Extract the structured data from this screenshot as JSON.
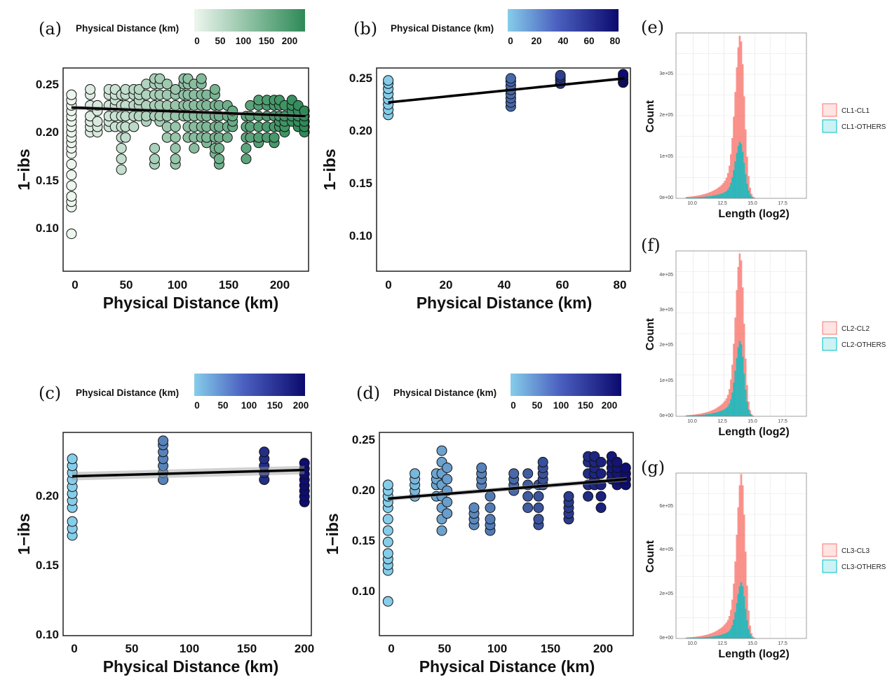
{
  "chart_data": [
    {
      "panel": "(a)",
      "type": "scatter",
      "xlabel": "Physical Distance (km)",
      "ylabel": "1−ibs",
      "xlim": [
        -8,
        228
      ],
      "ylim": [
        0.075,
        0.265
      ],
      "xticks": [
        "0",
        "50",
        "100",
        "150",
        "200"
      ],
      "yticks": [
        "0.10",
        "0.15",
        "0.20",
        "0.25"
      ],
      "colorbar": {
        "title": "Physical Distance (km)",
        "ticks": [
          "0",
          "50",
          "100",
          "150",
          "200"
        ],
        "range": [
          0,
          225
        ],
        "low": "#edf6ee",
        "high": "#2e8a57"
      },
      "fit": {
        "from": [
          0,
          0.228
        ],
        "to": [
          225,
          0.22
        ],
        "band": 0.002
      },
      "groups": [
        {
          "x": 0,
          "values": [
            0.11,
            0.135,
            0.14,
            0.145,
            0.155,
            0.165,
            0.175,
            0.185,
            0.19,
            0.195,
            0.2,
            0.205,
            0.21,
            0.215,
            0.22,
            0.225,
            0.23,
            0.235,
            0.24
          ]
        },
        {
          "x": 18,
          "values": [
            0.205,
            0.21,
            0.215,
            0.22,
            0.23,
            0.24,
            0.245
          ]
        },
        {
          "x": 25,
          "values": [
            0.205,
            0.21,
            0.215,
            0.225,
            0.23
          ]
        },
        {
          "x": 36,
          "values": [
            0.21,
            0.215,
            0.22,
            0.23,
            0.24,
            0.245
          ]
        },
        {
          "x": 42,
          "values": [
            0.21,
            0.22,
            0.23,
            0.235,
            0.24,
            0.245
          ]
        },
        {
          "x": 48,
          "values": [
            0.17,
            0.18,
            0.19,
            0.2,
            0.21,
            0.22,
            0.23,
            0.24
          ]
        },
        {
          "x": 52,
          "values": [
            0.2,
            0.21,
            0.22,
            0.23,
            0.24,
            0.245
          ]
        },
        {
          "x": 60,
          "values": [
            0.21,
            0.22,
            0.23,
            0.24,
            0.245
          ]
        },
        {
          "x": 65,
          "values": [
            0.22,
            0.23,
            0.235,
            0.24,
            0.245
          ]
        },
        {
          "x": 72,
          "values": [
            0.215,
            0.22,
            0.23,
            0.24,
            0.25
          ]
        },
        {
          "x": 80,
          "values": [
            0.175,
            0.18,
            0.19,
            0.22,
            0.23,
            0.24,
            0.25,
            0.255
          ]
        },
        {
          "x": 85,
          "values": [
            0.215,
            0.22,
            0.23,
            0.24,
            0.25,
            0.255
          ]
        },
        {
          "x": 92,
          "values": [
            0.2,
            0.21,
            0.22,
            0.23,
            0.24,
            0.25
          ]
        },
        {
          "x": 100,
          "values": [
            0.175,
            0.18,
            0.19,
            0.2,
            0.21,
            0.22,
            0.23,
            0.24,
            0.245
          ]
        },
        {
          "x": 108,
          "values": [
            0.22,
            0.23,
            0.24,
            0.25,
            0.255
          ]
        },
        {
          "x": 112,
          "values": [
            0.2,
            0.21,
            0.22,
            0.23,
            0.24,
            0.25,
            0.255
          ]
        },
        {
          "x": 118,
          "values": [
            0.19,
            0.2,
            0.21,
            0.22,
            0.23,
            0.24,
            0.25
          ]
        },
        {
          "x": 125,
          "values": [
            0.2,
            0.21,
            0.22,
            0.23,
            0.24,
            0.25,
            0.255
          ]
        },
        {
          "x": 130,
          "values": [
            0.195,
            0.2,
            0.21,
            0.22,
            0.23,
            0.24
          ]
        },
        {
          "x": 138,
          "values": [
            0.185,
            0.19,
            0.2,
            0.21,
            0.22,
            0.23,
            0.24,
            0.245
          ]
        },
        {
          "x": 142,
          "values": [
            0.175,
            0.18,
            0.19,
            0.2,
            0.21,
            0.22,
            0.23
          ]
        },
        {
          "x": 150,
          "values": [
            0.2,
            0.21,
            0.22,
            0.23
          ]
        },
        {
          "x": 155,
          "values": [
            0.21,
            0.215,
            0.22,
            0.225
          ]
        },
        {
          "x": 168,
          "values": [
            0.18,
            0.19,
            0.2,
            0.21,
            0.22
          ]
        },
        {
          "x": 172,
          "values": [
            0.2,
            0.21,
            0.22,
            0.23
          ]
        },
        {
          "x": 180,
          "values": [
            0.195,
            0.2,
            0.21,
            0.22,
            0.23,
            0.235
          ]
        },
        {
          "x": 188,
          "values": [
            0.2,
            0.21,
            0.22,
            0.23,
            0.235
          ]
        },
        {
          "x": 195,
          "values": [
            0.195,
            0.2,
            0.21,
            0.22,
            0.23,
            0.235
          ]
        },
        {
          "x": 200,
          "values": [
            0.21,
            0.215,
            0.22,
            0.23,
            0.235
          ]
        },
        {
          "x": 205,
          "values": [
            0.205,
            0.21,
            0.215,
            0.22,
            0.23
          ]
        },
        {
          "x": 212,
          "values": [
            0.215,
            0.22,
            0.225,
            0.23,
            0.235
          ]
        },
        {
          "x": 218,
          "values": [
            0.21,
            0.215,
            0.22,
            0.225,
            0.23
          ]
        },
        {
          "x": 224,
          "values": [
            0.205,
            0.21,
            0.215,
            0.22,
            0.225
          ]
        }
      ]
    },
    {
      "panel": "(b)",
      "type": "scatter",
      "xlabel": "Physical Distance (km)",
      "ylabel": "1−ibs",
      "xlim": [
        -4,
        83
      ],
      "ylim": [
        0.06,
        0.255
      ],
      "xticks": [
        "0",
        "20",
        "40",
        "60",
        "80"
      ],
      "yticks": [
        "0.10",
        "0.15",
        "0.20",
        "0.25"
      ],
      "colorbar": {
        "title": "Physical Distance (km)",
        "ticks": [
          "0",
          "20",
          "40",
          "60",
          "80"
        ],
        "range": [
          0,
          81
        ],
        "low": "#86cdea",
        "high": "#0c0a6e"
      },
      "fit": {
        "from": [
          0,
          0.222
        ],
        "to": [
          81,
          0.245
        ],
        "band": 0.001
      },
      "groups": [
        {
          "x": 0,
          "values": [
            0.21,
            0.215,
            0.22,
            0.225,
            0.23,
            0.235,
            0.24,
            0.243
          ]
        },
        {
          "x": 42,
          "values": [
            0.218,
            0.222,
            0.226,
            0.23,
            0.234,
            0.238,
            0.242,
            0.245
          ]
        },
        {
          "x": 59,
          "values": [
            0.24,
            0.243,
            0.246,
            0.248
          ]
        },
        {
          "x": 80.5,
          "values": [
            0.241,
            0.244,
            0.247,
            0.249
          ]
        }
      ]
    },
    {
      "panel": "(c)",
      "type": "scatter",
      "xlabel": "Physical Distance (km)",
      "ylabel": "1−ibs",
      "xlim": [
        -8,
        208
      ],
      "ylim": [
        0.098,
        0.244
      ],
      "xticks": [
        "0",
        "50",
        "100",
        "150",
        "200"
      ],
      "yticks": [
        "0.10",
        "0.15",
        "0.20"
      ],
      "colorbar": {
        "title": "Physical Distance (km)",
        "ticks": [
          "0",
          "50",
          "100",
          "150",
          "200"
        ],
        "range": [
          0,
          205
        ],
        "low": "#86cdea",
        "high": "#0c0a6e"
      },
      "fit": {
        "from": [
          0,
          0.2125
        ],
        "to": [
          202,
          0.217
        ],
        "band": 0.003
      },
      "groups": [
        {
          "x": 0,
          "values": [
            0.17,
            0.175,
            0.18,
            0.19,
            0.195,
            0.2,
            0.205,
            0.21,
            0.215,
            0.22,
            0.225
          ]
        },
        {
          "x": 79,
          "values": [
            0.21,
            0.215,
            0.22,
            0.225,
            0.23,
            0.235,
            0.238
          ]
        },
        {
          "x": 167,
          "values": [
            0.21,
            0.215,
            0.22,
            0.225,
            0.23
          ]
        },
        {
          "x": 202,
          "values": [
            0.194,
            0.198,
            0.202,
            0.206,
            0.21,
            0.214,
            0.218,
            0.222
          ]
        }
      ]
    },
    {
      "panel": "(d)",
      "type": "scatter",
      "xlabel": "Physical Distance (km)",
      "ylabel": "1−ibs",
      "xlim": [
        -8,
        228
      ],
      "ylim": [
        0.078,
        0.256
      ],
      "xticks": [
        "0",
        "50",
        "100",
        "150",
        "200"
      ],
      "yticks": [
        "0.10",
        "0.15",
        "0.20",
        "0.25"
      ],
      "colorbar": {
        "title": "Physical Distance (km)",
        "ticks": [
          "0",
          "50",
          "100",
          "150",
          "200"
        ],
        "range": [
          0,
          225
        ],
        "low": "#86cdea",
        "high": "#0c0a6e"
      },
      "fit": {
        "from": [
          0,
          0.198
        ],
        "to": [
          222,
          0.215
        ],
        "band": 0.002
      },
      "groups": [
        {
          "x": 0,
          "values": [
            0.108,
            0.135,
            0.14,
            0.145,
            0.15,
            0.16,
            0.17,
            0.18,
            0.19,
            0.195,
            0.2,
            0.205,
            0.21
          ]
        },
        {
          "x": 25,
          "values": [
            0.2,
            0.205,
            0.21,
            0.215,
            0.22
          ]
        },
        {
          "x": 45,
          "values": [
            0.2,
            0.21,
            0.215,
            0.22
          ]
        },
        {
          "x": 50,
          "values": [
            0.17,
            0.18,
            0.19,
            0.2,
            0.21,
            0.22,
            0.23,
            0.24
          ]
        },
        {
          "x": 55,
          "values": [
            0.185,
            0.195,
            0.205,
            0.215,
            0.225
          ]
        },
        {
          "x": 80,
          "values": [
            0.175,
            0.18,
            0.185,
            0.19
          ]
        },
        {
          "x": 87,
          "values": [
            0.21,
            0.215,
            0.22,
            0.225
          ]
        },
        {
          "x": 95,
          "values": [
            0.17,
            0.175,
            0.18,
            0.19,
            0.2
          ]
        },
        {
          "x": 117,
          "values": [
            0.205,
            0.21,
            0.215,
            0.22
          ]
        },
        {
          "x": 130,
          "values": [
            0.19,
            0.2,
            0.21,
            0.22
          ]
        },
        {
          "x": 140,
          "values": [
            0.175,
            0.18,
            0.19,
            0.2,
            0.21
          ]
        },
        {
          "x": 144,
          "values": [
            0.21,
            0.215,
            0.22,
            0.225,
            0.23
          ]
        },
        {
          "x": 168,
          "values": [
            0.18,
            0.185,
            0.19,
            0.195,
            0.2
          ]
        },
        {
          "x": 186,
          "values": [
            0.2,
            0.21,
            0.22,
            0.23,
            0.235
          ]
        },
        {
          "x": 192,
          "values": [
            0.21,
            0.215,
            0.22,
            0.225,
            0.23,
            0.235
          ]
        },
        {
          "x": 198,
          "values": [
            0.19,
            0.2,
            0.21,
            0.22,
            0.23
          ]
        },
        {
          "x": 208,
          "values": [
            0.215,
            0.22,
            0.225,
            0.23,
            0.235
          ]
        },
        {
          "x": 213,
          "values": [
            0.21,
            0.215,
            0.22,
            0.225,
            0.23
          ]
        },
        {
          "x": 221,
          "values": [
            0.21,
            0.215,
            0.22,
            0.225
          ]
        }
      ]
    },
    {
      "panel": "(e)",
      "type": "bar",
      "xlabel": "Length (log2)",
      "ylabel": "Count",
      "xlim": [
        8.6,
        19.2
      ],
      "ylim": [
        0,
        380000
      ],
      "xticks": [
        "10.0",
        "12.5",
        "15.0",
        "17.5"
      ],
      "yticks": [
        "0e+00",
        "1e+05",
        "2e+05",
        "3e+05"
      ],
      "peak": 13.8,
      "spread": 0.55,
      "tail": 1.2,
      "series": [
        {
          "name": "CL1-CL1",
          "color": "#f8766d",
          "peak_count": 375000
        },
        {
          "name": "CL1-OTHERS",
          "color": "#00bfc4",
          "peak_count": 130000
        }
      ]
    },
    {
      "panel": "(f)",
      "type": "bar",
      "xlabel": "Length (log2)",
      "ylabel": "Count",
      "xlim": [
        8.6,
        19.2
      ],
      "ylim": [
        0,
        460000
      ],
      "xticks": [
        "10.0",
        "12.5",
        "15.0",
        "17.5"
      ],
      "yticks": [
        "0e+00",
        "1e+05",
        "2e+05",
        "3e+05",
        "4e+05"
      ],
      "peak": 13.8,
      "spread": 0.5,
      "tail": 1.1,
      "series": [
        {
          "name": "CL2-CL2",
          "color": "#f8766d",
          "peak_count": 455000
        },
        {
          "name": "CL2-OTHERS",
          "color": "#00bfc4",
          "peak_count": 210000
        }
      ]
    },
    {
      "panel": "(g)",
      "type": "bar",
      "xlabel": "Length (log2)",
      "ylabel": "Count",
      "xlim": [
        8.6,
        19.2
      ],
      "ylim": [
        0,
        740000
      ],
      "xticks": [
        "10.0",
        "12.5",
        "15.0",
        "17.5"
      ],
      "yticks": [
        "0e+00",
        "2e+05",
        "4e+05",
        "6e+05"
      ],
      "peak": 13.9,
      "spread": 0.5,
      "tail": 1.1,
      "series": [
        {
          "name": "CL3-CL3",
          "color": "#f8766d",
          "peak_count": 735000
        },
        {
          "name": "CL3-OTHERS",
          "color": "#00bfc4",
          "peak_count": 250000
        }
      ]
    }
  ]
}
